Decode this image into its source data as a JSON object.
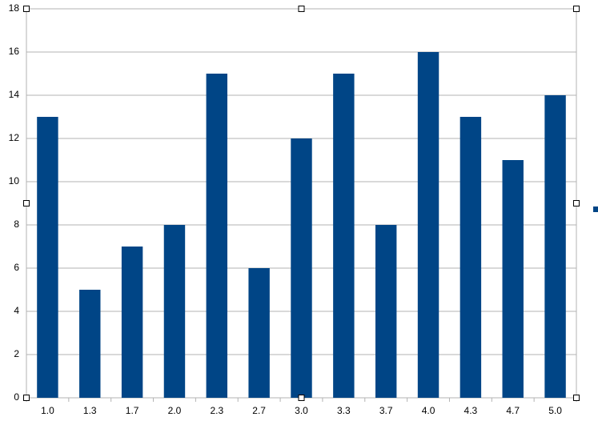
{
  "chart_data": {
    "type": "bar",
    "categories": [
      "1.0",
      "1.3",
      "1.7",
      "2.0",
      "2.3",
      "2.7",
      "3.0",
      "3.3",
      "3.7",
      "4.0",
      "4.3",
      "4.7",
      "5.0"
    ],
    "values": [
      13,
      5,
      7,
      8,
      15,
      6,
      12,
      15,
      8,
      16,
      13,
      11,
      14
    ],
    "color": "#004586",
    "ylim": [
      0,
      18
    ],
    "yticks": [
      0,
      2,
      4,
      6,
      8,
      10,
      12,
      14,
      16,
      18
    ],
    "grid": true
  }
}
